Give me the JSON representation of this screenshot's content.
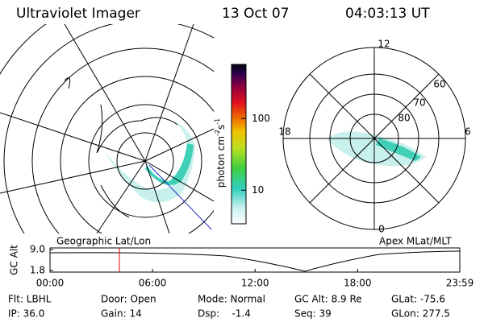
{
  "header": {
    "title": "Ultraviolet Imager",
    "date": "13 Oct 07",
    "time": "04:03:13 UT"
  },
  "colorbar": {
    "label": [
      "photon cm",
      "-2",
      "s",
      "-1"
    ],
    "scale": "log",
    "lim": [
      3.4,
      570
    ],
    "ticks": [
      10,
      100
    ]
  },
  "left_map": {
    "label": "Geographic Lat/Lon"
  },
  "right_map": {
    "label": "Apex MLat/MLT",
    "mlt_labels": [
      "12",
      "18",
      "6",
      "0"
    ],
    "lat_labels": [
      "60",
      "70",
      "80"
    ]
  },
  "timeline": {
    "ylabel": "GC Alt",
    "ylim": [
      1.2,
      9.6
    ],
    "yticks": [
      {
        "value": 9,
        "label": "9.0"
      },
      1.8
    ],
    "xlim": [
      0,
      1439
    ],
    "xticks": [
      {
        "value": 0,
        "label": "00:00"
      },
      {
        "value": 360,
        "label": "06:00"
      },
      {
        "value": 720,
        "label": "12:00"
      },
      {
        "value": 1080,
        "label": "18:00"
      },
      {
        "value": 1439,
        "label": "23:59"
      }
    ]
  },
  "footer": {
    "rows": [
      [
        "Flt: LBHL",
        "Door: Open",
        "Mode: Normal",
        "GC Alt: 8.9 Re",
        "GLat: -75.6"
      ],
      [
        "IP: 36.0",
        "Gain: 14",
        "Dsp:    -1.4",
        "Seq: 39",
        "GLon: 277.5"
      ]
    ]
  }
}
